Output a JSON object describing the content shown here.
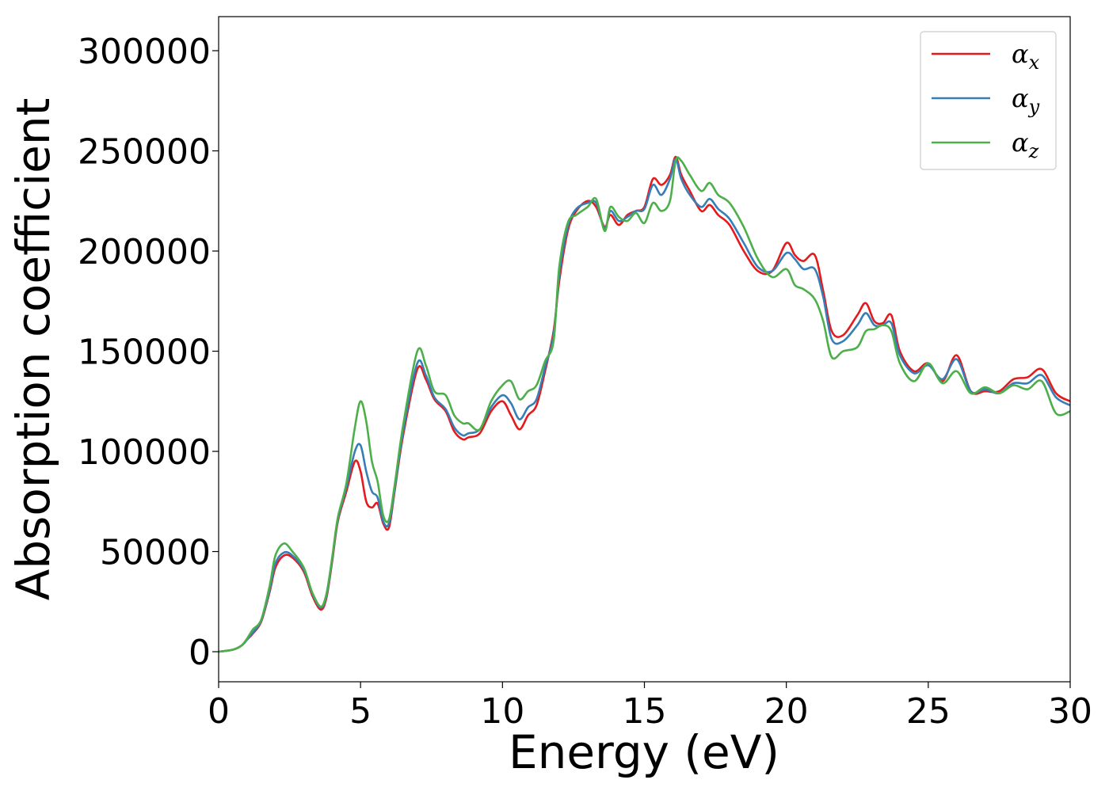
{
  "chart_data": {
    "type": "line",
    "title": "",
    "xlabel": "Energy (eV)",
    "ylabel": "Absorption coefficient",
    "xlim": [
      0,
      30
    ],
    "ylim": [
      -15000,
      317000
    ],
    "xticks": [
      0,
      5,
      10,
      15,
      20,
      25,
      30
    ],
    "xtick_labels": [
      "0",
      "5",
      "10",
      "15",
      "20",
      "25",
      "30"
    ],
    "yticks": [
      0,
      50000,
      100000,
      150000,
      200000,
      250000,
      300000
    ],
    "ytick_labels": [
      "0",
      "50000",
      "100000",
      "150000",
      "200000",
      "250000",
      "300000"
    ],
    "grid": false,
    "legend_position": "top-right",
    "series": [
      {
        "name": "α_x",
        "label_base": "α",
        "label_sub": "x",
        "color": "#e41a1c",
        "x": [
          0,
          0.5,
          0.8,
          1.0,
          1.2,
          1.5,
          1.8,
          2.0,
          2.3,
          2.6,
          3.0,
          3.3,
          3.6,
          3.8,
          4.0,
          4.2,
          4.5,
          4.8,
          5.0,
          5.2,
          5.4,
          5.6,
          5.8,
          6.0,
          6.2,
          6.5,
          7.0,
          7.3,
          7.6,
          8.0,
          8.3,
          8.6,
          8.8,
          9.2,
          9.6,
          10.0,
          10.3,
          10.6,
          10.9,
          11.2,
          11.5,
          11.8,
          12.0,
          12.3,
          12.6,
          13.0,
          13.3,
          13.6,
          13.8,
          14.1,
          14.4,
          14.7,
          15.0,
          15.3,
          15.6,
          15.9,
          16.1,
          16.3,
          16.6,
          17.0,
          17.3,
          17.6,
          18.0,
          18.5,
          19.0,
          19.5,
          20.0,
          20.3,
          20.6,
          21.0,
          21.3,
          21.6,
          22.0,
          22.5,
          22.8,
          23.1,
          23.4,
          23.7,
          24.0,
          24.5,
          25.0,
          25.5,
          26.0,
          26.5,
          27.0,
          27.5,
          28.0,
          28.5,
          29.0,
          29.5,
          30.0
        ],
        "y": [
          0,
          1000,
          3000,
          6000,
          9000,
          15000,
          30000,
          42000,
          48000,
          47000,
          40000,
          28000,
          21000,
          27000,
          45000,
          65000,
          80000,
          95000,
          90000,
          75000,
          72000,
          74000,
          64000,
          62000,
          80000,
          108000,
          141000,
          136000,
          126000,
          120000,
          110000,
          106000,
          107000,
          109000,
          120000,
          125000,
          118000,
          111000,
          118000,
          123000,
          140000,
          160000,
          185000,
          210000,
          220000,
          225000,
          222000,
          212000,
          218000,
          213000,
          218000,
          220000,
          222000,
          236000,
          233000,
          238000,
          247000,
          238000,
          230000,
          220000,
          223000,
          218000,
          213000,
          200000,
          190000,
          190000,
          204000,
          198000,
          195000,
          198000,
          180000,
          160000,
          158000,
          168000,
          174000,
          165000,
          164000,
          168000,
          150000,
          140000,
          144000,
          135000,
          148000,
          130000,
          130000,
          130000,
          136000,
          137000,
          141000,
          129000,
          125000
        ]
      },
      {
        "name": "α_y",
        "label_base": "α",
        "label_sub": "y",
        "color": "#377eb8",
        "x": [
          0,
          0.5,
          0.8,
          1.0,
          1.2,
          1.5,
          1.8,
          2.0,
          2.3,
          2.6,
          3.0,
          3.3,
          3.6,
          3.8,
          4.0,
          4.2,
          4.5,
          4.8,
          5.0,
          5.2,
          5.4,
          5.6,
          5.8,
          6.0,
          6.2,
          6.5,
          7.0,
          7.3,
          7.6,
          8.0,
          8.3,
          8.6,
          8.8,
          9.2,
          9.6,
          10.0,
          10.3,
          10.6,
          10.9,
          11.2,
          11.5,
          11.8,
          12.0,
          12.3,
          12.6,
          13.0,
          13.3,
          13.6,
          13.8,
          14.1,
          14.4,
          14.7,
          15.0,
          15.3,
          15.6,
          15.9,
          16.1,
          16.3,
          16.6,
          17.0,
          17.3,
          17.6,
          18.0,
          18.5,
          19.0,
          19.5,
          20.0,
          20.3,
          20.6,
          21.0,
          21.3,
          21.6,
          22.0,
          22.5,
          22.8,
          23.1,
          23.4,
          23.7,
          24.0,
          24.5,
          25.0,
          25.5,
          26.0,
          26.5,
          27.0,
          27.5,
          28.0,
          28.5,
          29.0,
          29.5,
          30.0
        ],
        "y": [
          0,
          1000,
          3000,
          6000,
          9500,
          15500,
          31000,
          44000,
          49500,
          48000,
          41000,
          29000,
          22000,
          28000,
          46000,
          66000,
          82000,
          100000,
          103000,
          90000,
          80000,
          77000,
          65000,
          64000,
          81000,
          110000,
          144000,
          138000,
          127000,
          121000,
          112000,
          108000,
          109000,
          111000,
          122000,
          128000,
          124000,
          116000,
          122000,
          126000,
          142000,
          158000,
          188000,
          212000,
          221000,
          224000,
          224000,
          211000,
          220000,
          215000,
          217000,
          220000,
          221000,
          233000,
          228000,
          236000,
          246000,
          236000,
          228000,
          222000,
          226000,
          221000,
          216000,
          204000,
          192000,
          190000,
          199000,
          196000,
          191000,
          191000,
          177000,
          156000,
          155000,
          163000,
          169000,
          163000,
          163000,
          164000,
          148000,
          139000,
          143000,
          136000,
          146000,
          130000,
          131000,
          129000,
          134000,
          134000,
          138000,
          127000,
          123000
        ]
      },
      {
        "name": "α_z",
        "label_base": "α",
        "label_sub": "z",
        "color": "#4daf4a",
        "x": [
          0,
          0.5,
          0.8,
          1.0,
          1.2,
          1.5,
          1.8,
          2.0,
          2.3,
          2.6,
          3.0,
          3.3,
          3.6,
          3.8,
          4.0,
          4.2,
          4.5,
          4.8,
          5.0,
          5.2,
          5.4,
          5.6,
          5.8,
          6.0,
          6.2,
          6.5,
          7.0,
          7.3,
          7.6,
          8.0,
          8.3,
          8.6,
          8.8,
          9.2,
          9.6,
          10.0,
          10.3,
          10.6,
          10.9,
          11.2,
          11.5,
          11.8,
          12.0,
          12.3,
          12.6,
          13.0,
          13.3,
          13.6,
          13.8,
          14.1,
          14.4,
          14.7,
          15.0,
          15.3,
          15.6,
          15.9,
          16.1,
          16.3,
          16.6,
          17.0,
          17.3,
          17.6,
          18.0,
          18.5,
          19.0,
          19.5,
          20.0,
          20.3,
          20.6,
          21.0,
          21.3,
          21.6,
          22.0,
          22.5,
          22.8,
          23.1,
          23.4,
          23.7,
          24.0,
          24.5,
          25.0,
          25.5,
          26.0,
          26.5,
          27.0,
          27.5,
          28.0,
          28.5,
          29.0,
          29.5,
          30.0
        ],
        "y": [
          0,
          1000,
          3000,
          6500,
          11000,
          16000,
          33000,
          48000,
          54000,
          50000,
          42000,
          29500,
          22500,
          29000,
          47000,
          67000,
          84000,
          112000,
          125000,
          115000,
          95000,
          85000,
          68000,
          66000,
          83000,
          113000,
          150000,
          143000,
          130000,
          128000,
          118000,
          114000,
          114000,
          111000,
          125000,
          133000,
          135000,
          126000,
          130000,
          133000,
          145000,
          155000,
          192000,
          214000,
          218000,
          222000,
          226000,
          210000,
          222000,
          217000,
          215000,
          219000,
          214000,
          224000,
          220000,
          225000,
          245000,
          245000,
          238000,
          230000,
          234000,
          228000,
          224000,
          212000,
          196000,
          187000,
          191000,
          183000,
          181000,
          176000,
          165000,
          147000,
          150000,
          152000,
          160000,
          161000,
          163000,
          160000,
          144000,
          135000,
          144000,
          134000,
          140000,
          129000,
          132000,
          129000,
          133000,
          131000,
          135000,
          119000,
          120000
        ]
      }
    ]
  }
}
